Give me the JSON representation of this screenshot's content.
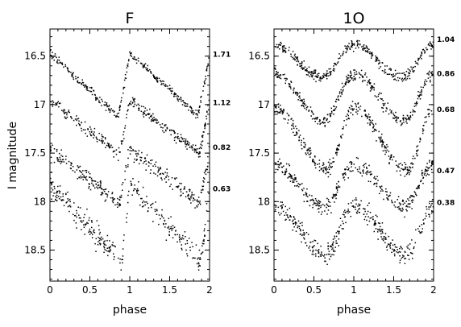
{
  "chart_data": [
    {
      "type": "scatter",
      "title": "F",
      "xlabel": "phase",
      "ylabel": "I magnitude",
      "xlim": [
        0,
        2
      ],
      "ylim": [
        18.82,
        16.22
      ],
      "y_inverted": true,
      "x_ticks": [
        {
          "v": 0,
          "label": "0"
        },
        {
          "v": 0.5,
          "label": "0.5"
        },
        {
          "v": 1,
          "label": "1"
        },
        {
          "v": 1.5,
          "label": "1.5"
        },
        {
          "v": 2,
          "label": "2"
        }
      ],
      "y_ticks": [
        {
          "v": 16.5,
          "label": "16.5"
        },
        {
          "v": 17,
          "label": "17"
        },
        {
          "v": 17.5,
          "label": "17.5"
        },
        {
          "v": 18,
          "label": "18"
        },
        {
          "v": 18.5,
          "label": "18.5"
        }
      ],
      "marker_color": "#000000",
      "series": [
        {
          "period": "1.71",
          "label_mag": 16.48,
          "max_mag": 16.47,
          "min_mag": 17.12,
          "minimum_phase": 0.85,
          "maximum_phase": 0.99,
          "scatter": 0.02
        },
        {
          "period": "1.12",
          "label_mag": 16.98,
          "max_mag": 16.95,
          "min_mag": 17.51,
          "minimum_phase": 0.87,
          "maximum_phase": 0.99,
          "scatter": 0.03
        },
        {
          "period": "0.82",
          "label_mag": 17.44,
          "max_mag": 17.46,
          "min_mag": 18.02,
          "minimum_phase": 0.87,
          "maximum_phase": 0.99,
          "scatter": 0.04
        },
        {
          "period": "0.63",
          "label_mag": 17.87,
          "max_mag": 17.82,
          "min_mag": 18.62,
          "minimum_phase": 0.89,
          "maximum_phase": 0.99,
          "scatter": 0.06
        }
      ]
    },
    {
      "type": "scatter",
      "title": "1O",
      "xlabel": "phase",
      "ylabel": "",
      "xlim": [
        0,
        2
      ],
      "ylim": [
        18.82,
        16.22
      ],
      "y_inverted": true,
      "x_ticks": [
        {
          "v": 0,
          "label": "0"
        },
        {
          "v": 0.5,
          "label": "0.5"
        },
        {
          "v": 1,
          "label": "1"
        },
        {
          "v": 1.5,
          "label": "1.5"
        },
        {
          "v": 2,
          "label": "2"
        }
      ],
      "y_ticks": [
        {
          "v": 16.5,
          "label": "16.5"
        },
        {
          "v": 17,
          "label": "17"
        },
        {
          "v": 17.5,
          "label": "17.5"
        },
        {
          "v": 18,
          "label": "18"
        },
        {
          "v": 18.5,
          "label": "18.5"
        }
      ],
      "marker_color": "#000000",
      "series": [
        {
          "period": "1.04",
          "label_mag": 16.33,
          "max_mag": 16.38,
          "min_mag": 16.72,
          "minimum_phase": 0.6,
          "maximum_phase": 1.0,
          "scatter": 0.025
        },
        {
          "period": "0.86",
          "label_mag": 16.68,
          "max_mag": 16.68,
          "min_mag": 17.17,
          "minimum_phase": 0.63,
          "maximum_phase": 1.0,
          "scatter": 0.03
        },
        {
          "period": "0.68",
          "label_mag": 17.05,
          "max_mag": 17.04,
          "min_mag": 17.67,
          "minimum_phase": 0.67,
          "maximum_phase": 1.0,
          "scatter": 0.035
        },
        {
          "period": "0.47",
          "label_mag": 17.68,
          "max_mag": 17.62,
          "min_mag": 18.05,
          "minimum_phase": 0.63,
          "maximum_phase": 1.0,
          "scatter": 0.04
        },
        {
          "period": "0.38",
          "label_mag": 18.01,
          "max_mag": 18.05,
          "min_mag": 18.55,
          "minimum_phase": 0.65,
          "maximum_phase": 1.0,
          "scatter": 0.05
        }
      ]
    }
  ]
}
